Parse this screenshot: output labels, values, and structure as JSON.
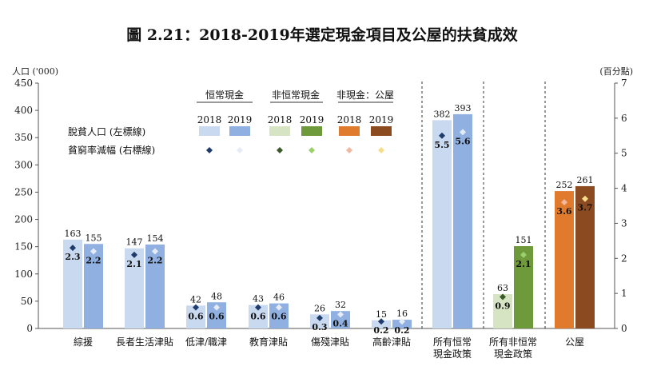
{
  "chart_data": {
    "type": "bar",
    "title": "圖 2.21：2018-2019年選定現金項目及公屋的扶貧成效",
    "left_axis_label": "人口 ('000)",
    "right_axis_label": "(百分點)",
    "left_ylim": [
      0,
      450
    ],
    "left_ticks": [
      "0",
      "50",
      "100",
      "150",
      "200",
      "250",
      "300",
      "350",
      "400",
      "450"
    ],
    "right_ylim": [
      0,
      7
    ],
    "right_ticks": [
      "0",
      "1",
      "2",
      "3",
      "4",
      "5",
      "6",
      "7"
    ],
    "grid": false,
    "legend": {
      "group_headers": [
        "恒常現金",
        "非恒常現金",
        "非現金：公屋"
      ],
      "years": [
        "2018",
        "2019",
        "2018",
        "2019",
        "2018",
        "2019"
      ],
      "row_bar_label": "脫貧人口 (左標線)",
      "row_marker_label": "貧窮率減幅 (右標線)",
      "bar_colors": [
        "#c9d9f0",
        "#8fb0e0",
        "#d7e4c4",
        "#6f9a3c",
        "#e07b2e",
        "#8b4a1f"
      ],
      "marker_colors": [
        "#1f3b6b",
        "#e6ecf7",
        "#3b5a2a",
        "#9bd16a",
        "#f2b8a0",
        "#f7dc8a"
      ]
    },
    "categories": [
      {
        "label_lines": [
          "綜援"
        ],
        "v2018": 163,
        "v2019": 155,
        "v2018_label": "163",
        "v2019_label": "155",
        "r2018": 2.3,
        "r2019": 2.2,
        "r2018_label": "2.3",
        "r2019_label": "2.2",
        "colors": [
          "#c9d9f0",
          "#8fb0e0"
        ],
        "marker_colors": [
          "#1f3b6b",
          "#e6ecf7"
        ]
      },
      {
        "label_lines": [
          "長者生活津貼"
        ],
        "v2018": 147,
        "v2019": 154,
        "v2018_label": "147",
        "v2019_label": "154",
        "r2018": 2.1,
        "r2019": 2.2,
        "r2018_label": "2.1",
        "r2019_label": "2.2",
        "colors": [
          "#c9d9f0",
          "#8fb0e0"
        ],
        "marker_colors": [
          "#1f3b6b",
          "#e6ecf7"
        ]
      },
      {
        "label_lines": [
          "低津/職津"
        ],
        "v2018": 42,
        "v2019": 48,
        "v2018_label": "42",
        "v2019_label": "48",
        "r2018": 0.6,
        "r2019": 0.6,
        "r2018_label": "0.6",
        "r2019_label": "0.6",
        "colors": [
          "#c9d9f0",
          "#8fb0e0"
        ],
        "marker_colors": [
          "#1f3b6b",
          "#e6ecf7"
        ]
      },
      {
        "label_lines": [
          "教育津貼"
        ],
        "v2018": 43,
        "v2019": 46,
        "v2018_label": "43",
        "v2019_label": "46",
        "r2018": 0.6,
        "r2019": 0.6,
        "r2018_label": "0.6",
        "r2019_label": "0.6",
        "colors": [
          "#c9d9f0",
          "#8fb0e0"
        ],
        "marker_colors": [
          "#1f3b6b",
          "#e6ecf7"
        ]
      },
      {
        "label_lines": [
          "傷殘津貼"
        ],
        "v2018": 26,
        "v2019": 32,
        "v2018_label": "26",
        "v2019_label": "32",
        "r2018": 0.3,
        "r2019": 0.4,
        "r2018_label": "0.3",
        "r2019_label": "0.4",
        "colors": [
          "#c9d9f0",
          "#8fb0e0"
        ],
        "marker_colors": [
          "#1f3b6b",
          "#e6ecf7"
        ]
      },
      {
        "label_lines": [
          "高齡津貼"
        ],
        "v2018": 15,
        "v2019": 16,
        "v2018_label": "15",
        "v2019_label": "16",
        "r2018": 0.2,
        "r2019": 0.2,
        "r2018_label": "0.2",
        "r2019_label": "0.2",
        "colors": [
          "#c9d9f0",
          "#8fb0e0"
        ],
        "marker_colors": [
          "#1f3b6b",
          "#e6ecf7"
        ]
      },
      {
        "label_lines": [
          "所有恒常",
          "現金政策"
        ],
        "v2018": 382,
        "v2019": 393,
        "v2018_label": "382",
        "v2019_label": "393",
        "r2018": 5.5,
        "r2019": 5.6,
        "r2018_label": "5.5",
        "r2019_label": "5.6",
        "colors": [
          "#c9d9f0",
          "#8fb0e0"
        ],
        "marker_colors": [
          "#1f3b6b",
          "#e6ecf7"
        ]
      },
      {
        "label_lines": [
          "所有非恒常",
          "現金政策"
        ],
        "v2018": 63,
        "v2019": 151,
        "v2018_label": "63",
        "v2019_label": "151",
        "r2018": 0.9,
        "r2019": 2.1,
        "r2018_label": "0.9",
        "r2019_label": "2.1",
        "colors": [
          "#d7e4c4",
          "#6f9a3c"
        ],
        "marker_colors": [
          "#3b5a2a",
          "#9bd16a"
        ]
      },
      {
        "label_lines": [
          "公屋"
        ],
        "v2018": 252,
        "v2019": 261,
        "v2018_label": "252",
        "v2019_label": "261",
        "r2018": 3.6,
        "r2019": 3.7,
        "r2018_label": "3.6",
        "r2019_label": "3.7",
        "colors": [
          "#e07b2e",
          "#8b4a1f"
        ],
        "marker_colors": [
          "#f2b8a0",
          "#f7dc8a"
        ]
      }
    ]
  }
}
